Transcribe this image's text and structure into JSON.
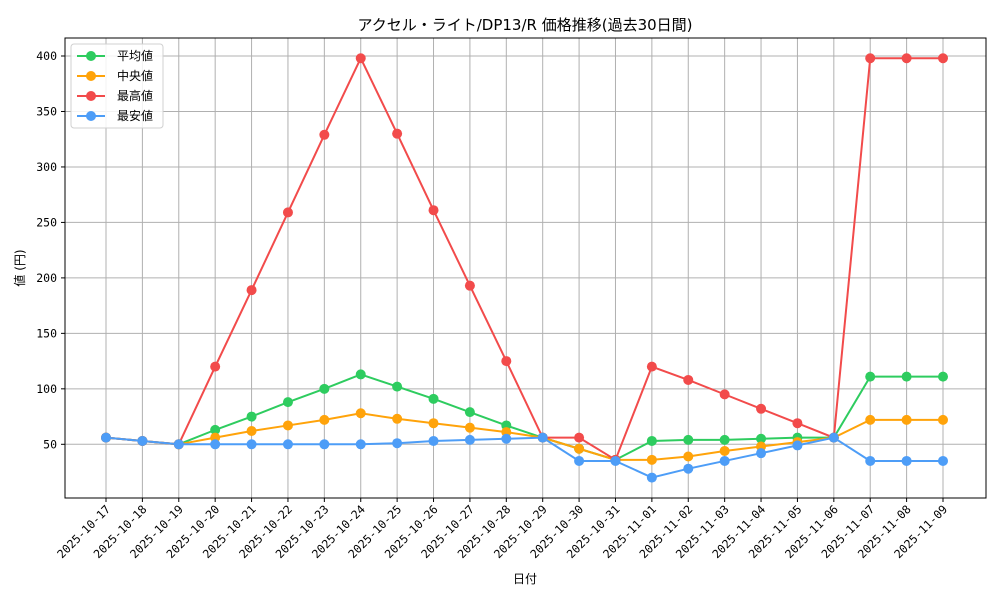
{
  "chart_data": {
    "type": "line",
    "title": "アクセル・ライト/DP13/R 価格推移(過去30日間)",
    "xlabel": "日付",
    "ylabel": "値 (円)",
    "ylim": [
      15,
      418
    ],
    "yticks": [
      50,
      100,
      150,
      200,
      250,
      300,
      350,
      400
    ],
    "grid": true,
    "legend_position": "upper left",
    "categories": [
      "2025-10-17",
      "2025-10-18",
      "2025-10-19",
      "2025-10-20",
      "2025-10-21",
      "2025-10-22",
      "2025-10-23",
      "2025-10-24",
      "2025-10-25",
      "2025-10-26",
      "2025-10-27",
      "2025-10-28",
      "2025-10-29",
      "2025-10-30",
      "2025-10-31",
      "2025-11-01",
      "2025-11-02",
      "2025-11-03",
      "2025-11-04",
      "2025-11-05",
      "2025-11-06",
      "2025-11-07",
      "2025-11-08",
      "2025-11-09"
    ],
    "series": [
      {
        "name": "平均値",
        "color": "#2ecc5f",
        "values": [
          56,
          53,
          50,
          63,
          75,
          88,
          100,
          113,
          102,
          91,
          79,
          67,
          56,
          46,
          36,
          53,
          54,
          54,
          55,
          56,
          56,
          111,
          111,
          111
        ]
      },
      {
        "name": "中央値",
        "color": "#ffa30a",
        "values": [
          56,
          53,
          50,
          56,
          62,
          67,
          72,
          78,
          73,
          69,
          65,
          61,
          56,
          46,
          36,
          36,
          39,
          44,
          48,
          52,
          56,
          72,
          72,
          72
        ]
      },
      {
        "name": "最高値",
        "color": "#f24b4b",
        "values": [
          56,
          53,
          50,
          120,
          189,
          259,
          329,
          398,
          330,
          261,
          193,
          125,
          56,
          56,
          36,
          120,
          108,
          95,
          82,
          69,
          56,
          398,
          398,
          398
        ]
      },
      {
        "name": "最安値",
        "color": "#4d9df7",
        "values": [
          56,
          53,
          50,
          50,
          50,
          50,
          50,
          50,
          51,
          53,
          54,
          55,
          56,
          35,
          35,
          20,
          28,
          35,
          42,
          49,
          56,
          35,
          35,
          35
        ]
      }
    ]
  }
}
